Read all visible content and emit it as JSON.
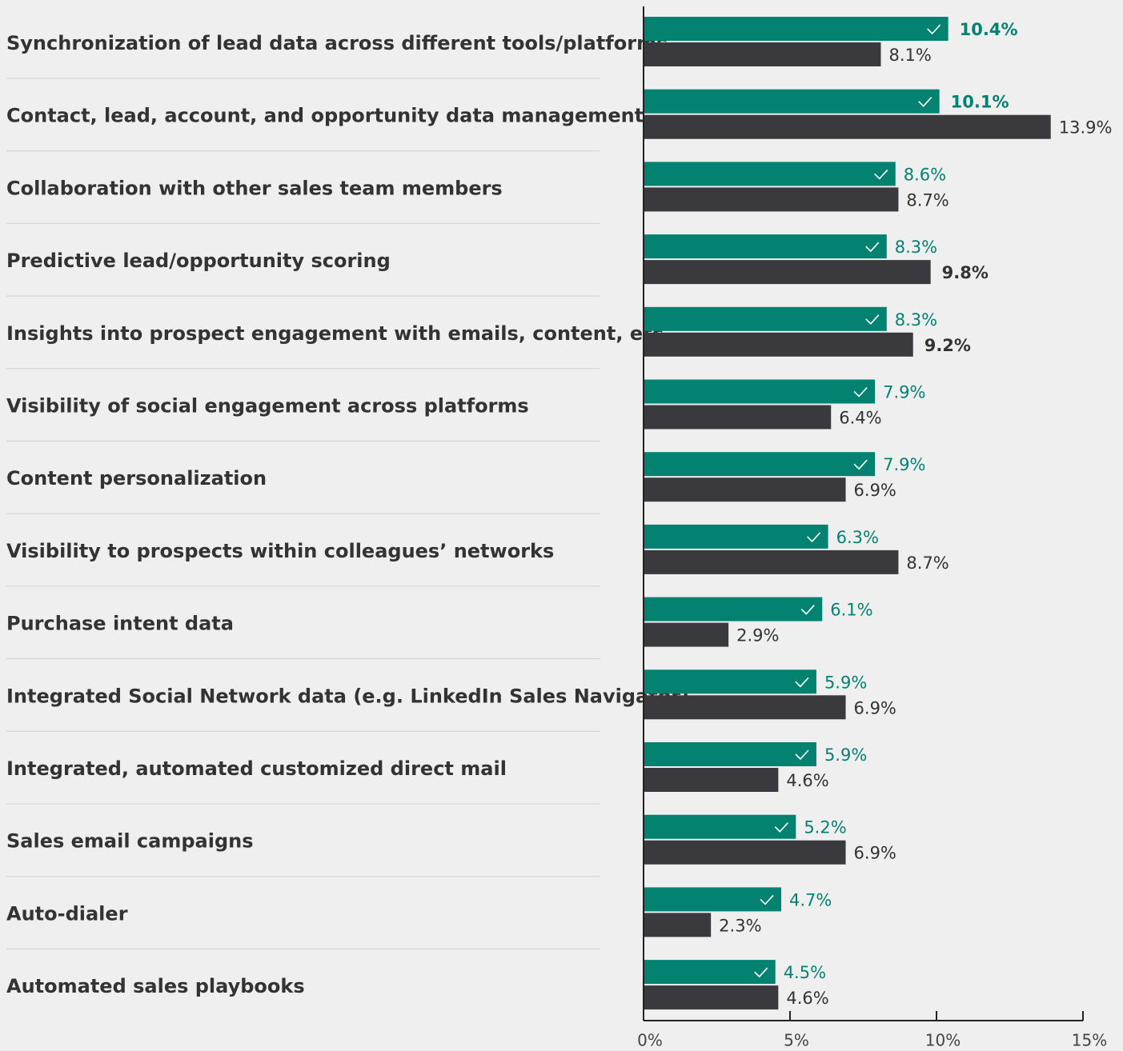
{
  "chart_data": {
    "type": "bar",
    "orientation": "horizontal",
    "categories": [
      "Synchronization of lead data across different tools/platforms",
      "Contact, lead, account, and opportunity data management",
      "Collaboration with other sales team members",
      "Predictive lead/opportunity scoring",
      "Insights into prospect engagement with emails, content, etc.",
      "Visibility of social engagement across platforms",
      "Content personalization",
      "Visibility to prospects within colleagues’ networks",
      "Purchase intent data",
      "Integrated Social Network data (e.g. LinkedIn Sales Navigator)",
      "Integrated, automated customized direct mail",
      "Sales email campaigns",
      "Auto-dialer",
      "Automated sales playbooks"
    ],
    "series": [
      {
        "color": "#038272",
        "label_color": "#038272",
        "values": [
          10.4,
          10.1,
          8.6,
          8.3,
          8.3,
          7.9,
          7.9,
          6.3,
          6.1,
          5.9,
          5.9,
          5.2,
          4.7,
          4.5
        ],
        "value_labels": [
          "10.4%",
          "10.1%",
          "8.6%",
          "8.3%",
          "8.3%",
          "7.9%",
          "7.9%",
          "6.3%",
          "6.1%",
          "5.9%",
          "5.9%",
          "5.2%",
          "4.7%",
          "4.5%"
        ],
        "bold": [
          true,
          true,
          false,
          false,
          false,
          false,
          false,
          false,
          false,
          false,
          false,
          false,
          false,
          false
        ]
      },
      {
        "color": "#3a3a3e",
        "label_color": "#333333",
        "values": [
          8.1,
          13.9,
          8.7,
          9.8,
          9.2,
          6.4,
          6.9,
          8.7,
          2.9,
          6.9,
          4.6,
          6.9,
          2.3,
          4.6
        ],
        "value_labels": [
          "8.1%",
          "13.9%",
          "8.7%",
          "9.8%",
          "9.2%",
          "6.4%",
          "6.9%",
          "8.7%",
          "2.9%",
          "6.9%",
          "4.6%",
          "6.9%",
          "2.3%",
          "4.6%"
        ],
        "bold": [
          false,
          false,
          false,
          true,
          true,
          false,
          false,
          false,
          false,
          false,
          false,
          false,
          false,
          false
        ]
      }
    ],
    "xlim": [
      0,
      15
    ],
    "xticks": [
      {
        "value": 0,
        "label": "0%"
      },
      {
        "value": 5,
        "label": "5%"
      },
      {
        "value": 10,
        "label": "10%"
      },
      {
        "value": 15,
        "label": "15%"
      }
    ]
  }
}
